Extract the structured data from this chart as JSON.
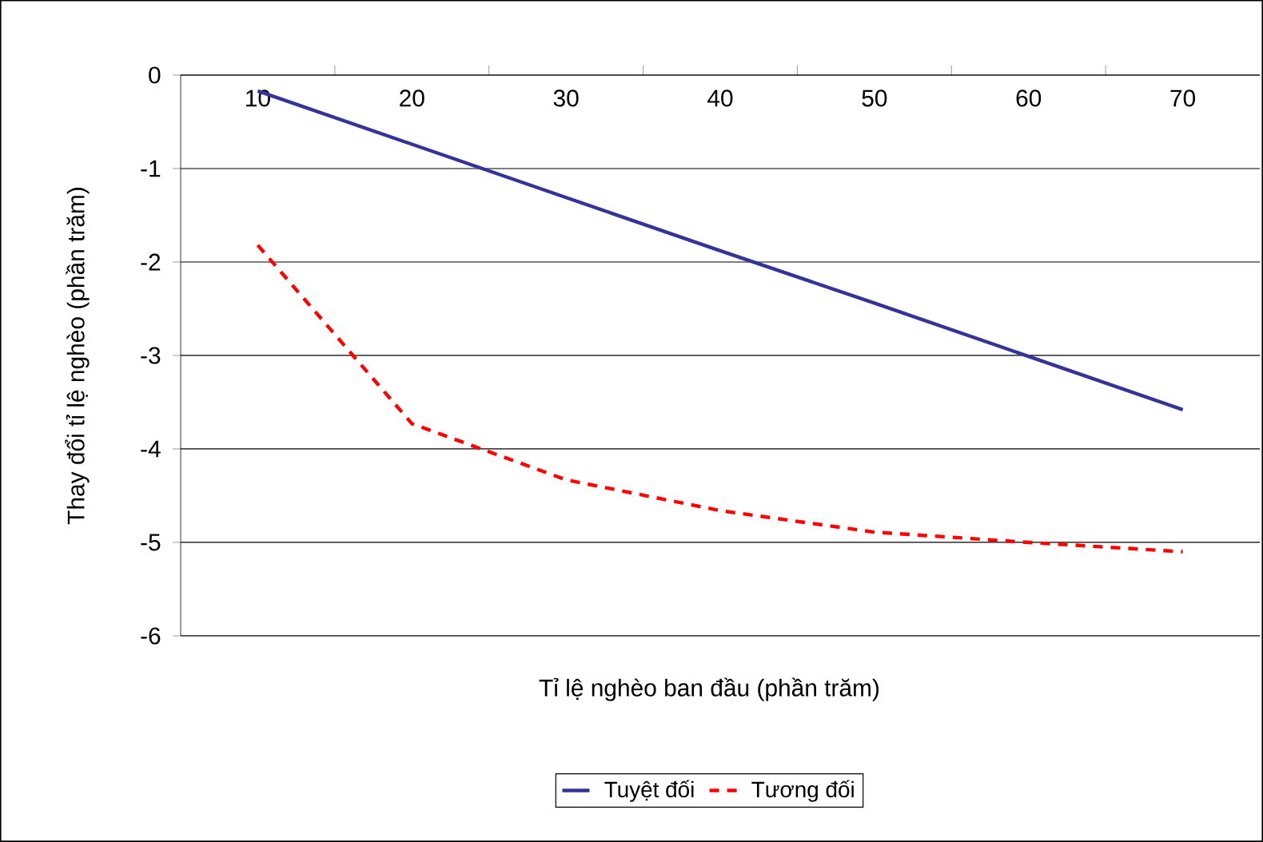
{
  "chart_data": {
    "type": "line",
    "xlabel": "Tỉ lệ nghèo ban đầu (phần trăm)",
    "ylabel": "Thay đổi tỉ lệ nghèo (phần trăm)",
    "categories": [
      "10",
      "20",
      "30",
      "40",
      "50",
      "60",
      "70"
    ],
    "series": [
      {
        "name": "Tuyệt đối",
        "color": "#333399",
        "line_style": "solid",
        "values": [
          -0.17,
          -0.74,
          -1.31,
          -1.88,
          -2.44,
          -3.01,
          -3.58
        ]
      },
      {
        "name": "Tương đối",
        "color": "#ff0000",
        "line_style": "dashed",
        "values": [
          -1.82,
          -3.73,
          -4.33,
          -4.66,
          -4.89,
          -5.0,
          -5.1
        ]
      }
    ],
    "ylim": [
      -6,
      0
    ],
    "yticks": [
      -6,
      -5,
      -4,
      -3,
      -2,
      -1,
      0
    ],
    "grid": "y",
    "legend": "bottom",
    "marker": "none"
  }
}
